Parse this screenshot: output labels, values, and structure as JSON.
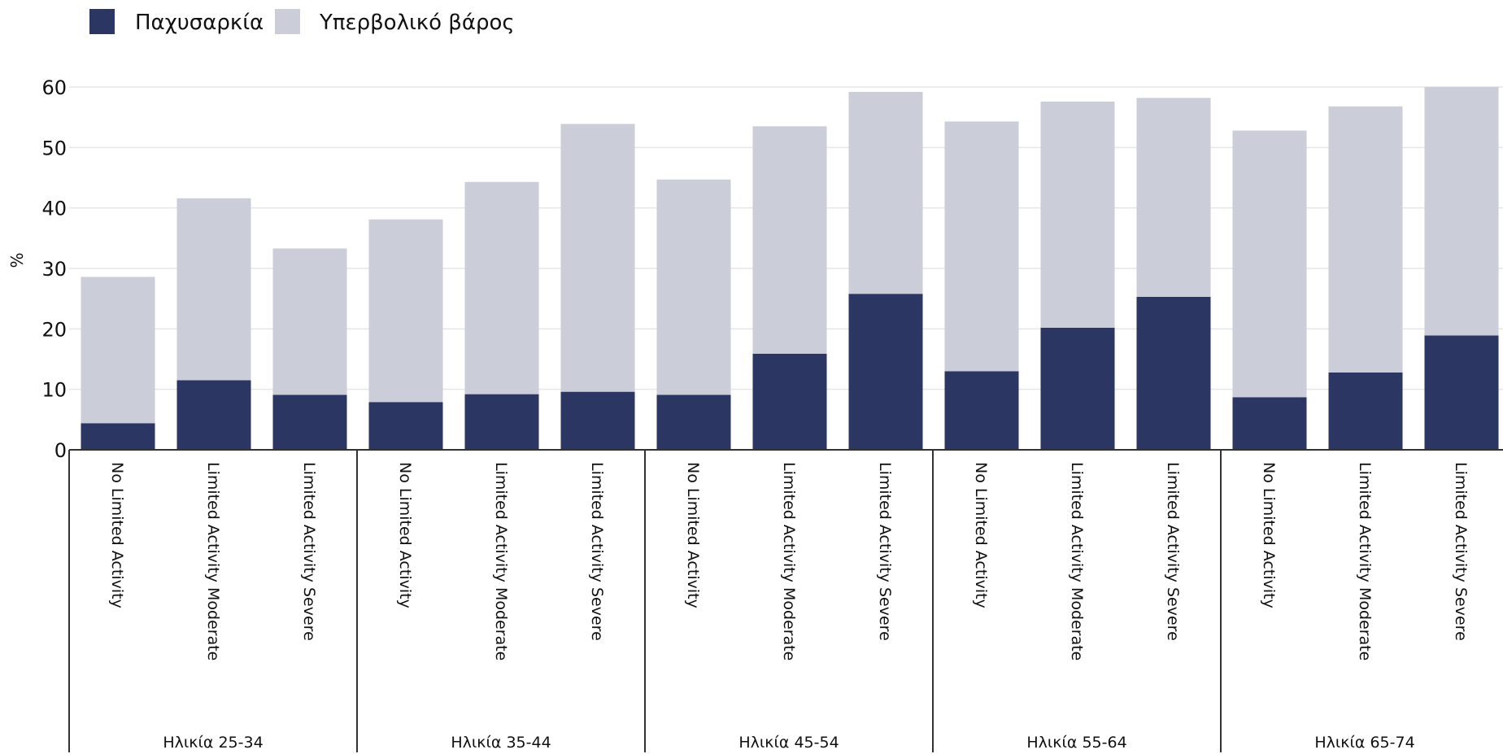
{
  "chart_data": {
    "type": "bar",
    "stacked": true,
    "ylabel": "%",
    "ylim": [
      0,
      60
    ],
    "yticks": [
      0,
      10,
      20,
      30,
      40,
      50,
      60
    ],
    "grid": true,
    "legend_position": "top-left",
    "groups": [
      "Ηλικία 25-34",
      "Ηλικία 35-44",
      "Ηλικία 45-54",
      "Ηλικία 55-64",
      "Ηλικία 65-74"
    ],
    "subcategories": [
      "No Limited Activity",
      "Limited Activity Moderate",
      "Limited Activity Severe"
    ],
    "series": [
      {
        "name": "Παχυσαρκία",
        "color": "#2b3663",
        "values": [
          4.4,
          11.5,
          9.1,
          7.9,
          9.2,
          9.6,
          9.1,
          15.9,
          25.8,
          13.0,
          20.2,
          25.3,
          8.7,
          12.8,
          18.9
        ]
      },
      {
        "name": "Υπερβολικό βάρος",
        "color": "#cbcdd8",
        "values": [
          24.2,
          30.1,
          24.2,
          30.2,
          35.1,
          44.3,
          35.6,
          37.6,
          33.4,
          41.3,
          37.4,
          32.9,
          44.1,
          44.0,
          41.1
        ]
      }
    ]
  }
}
